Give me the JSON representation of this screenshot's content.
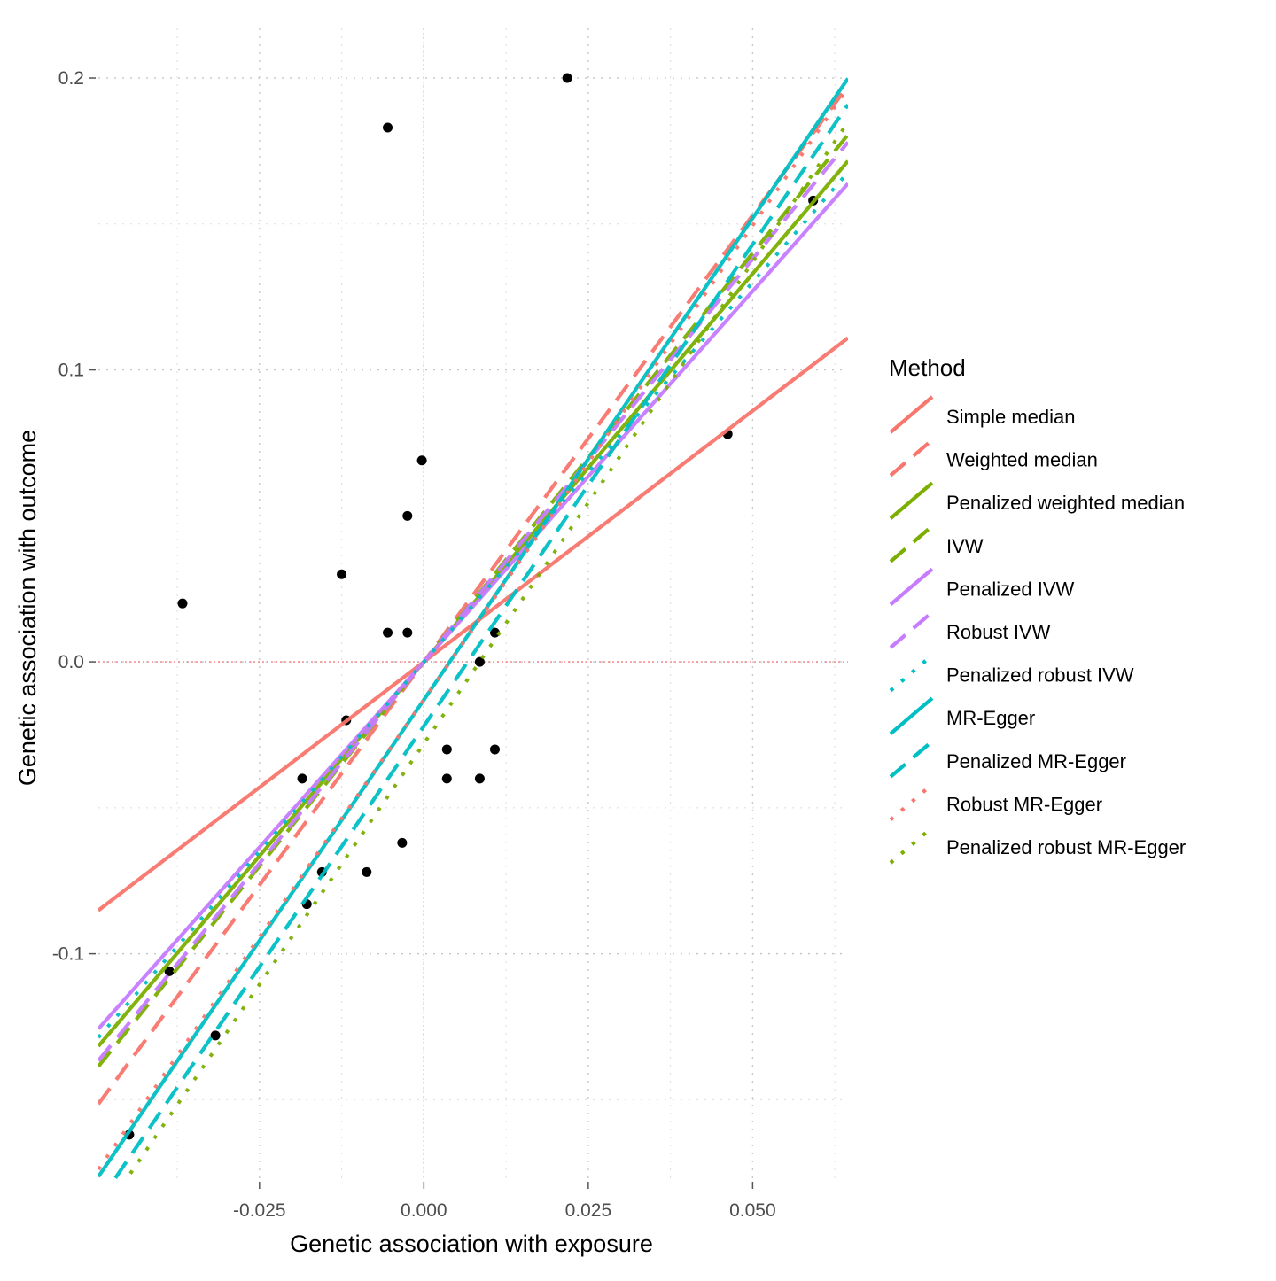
{
  "chart_data": {
    "type": "scatter",
    "xlabel": "Genetic association with exposure",
    "ylabel": "Genetic association with outcome",
    "xlim": [
      -0.0495,
      0.0645
    ],
    "ylim": [
      -0.1775,
      0.217
    ],
    "x_ticks": [
      {
        "value": -0.025,
        "label": "-0.025"
      },
      {
        "value": 0.0,
        "label": "0.000"
      },
      {
        "value": 0.025,
        "label": "0.025"
      },
      {
        "value": 0.05,
        "label": "0.050"
      }
    ],
    "y_ticks": [
      {
        "value": -0.1,
        "label": "-0.1"
      },
      {
        "value": 0.0,
        "label": "0.0"
      },
      {
        "value": 0.1,
        "label": "0.1"
      },
      {
        "value": 0.2,
        "label": "0.2"
      }
    ],
    "grid": true,
    "reference_lines": {
      "x": 0,
      "y": 0,
      "color": "#f08080"
    },
    "legend": {
      "title": "Method",
      "placement": "right"
    },
    "points": [
      {
        "x": 0.0218,
        "y": 0.2
      },
      {
        "x": -0.0055,
        "y": 0.183
      },
      {
        "x": 0.0592,
        "y": 0.158
      },
      {
        "x": 0.0462,
        "y": 0.078
      },
      {
        "x": -0.0003,
        "y": 0.069
      },
      {
        "x": -0.0025,
        "y": 0.05
      },
      {
        "x": -0.0125,
        "y": 0.03
      },
      {
        "x": -0.0367,
        "y": 0.02
      },
      {
        "x": -0.0055,
        "y": 0.01
      },
      {
        "x": -0.0025,
        "y": 0.01
      },
      {
        "x": 0.0108,
        "y": 0.01
      },
      {
        "x": 0.0085,
        "y": 0.0
      },
      {
        "x": -0.0118,
        "y": -0.02
      },
      {
        "x": 0.0035,
        "y": -0.03
      },
      {
        "x": 0.0108,
        "y": -0.03
      },
      {
        "x": -0.0185,
        "y": -0.04
      },
      {
        "x": 0.0035,
        "y": -0.04
      },
      {
        "x": 0.0085,
        "y": -0.04
      },
      {
        "x": -0.0033,
        "y": -0.062
      },
      {
        "x": -0.0155,
        "y": -0.072
      },
      {
        "x": -0.0087,
        "y": -0.072
      },
      {
        "x": -0.0178,
        "y": -0.083
      },
      {
        "x": -0.0387,
        "y": -0.106
      },
      {
        "x": -0.0317,
        "y": -0.128
      },
      {
        "x": -0.0448,
        "y": -0.162
      }
    ],
    "series": [
      {
        "name": "Simple median",
        "color": "#f8766d",
        "dash": "solid",
        "intercept": 0.0,
        "slope": 1.72
      },
      {
        "name": "Weighted median",
        "color": "#f8766d",
        "dash": "dashed",
        "intercept": 0.0,
        "slope": 3.06
      },
      {
        "name": "Penalized weighted median",
        "color": "#7cae00",
        "dash": "solid",
        "intercept": 0.0,
        "slope": 2.66
      },
      {
        "name": "IVW",
        "color": "#7cae00",
        "dash": "dashed",
        "intercept": 0.0,
        "slope": 2.8
      },
      {
        "name": "Penalized IVW",
        "color": "#c77cff",
        "dash": "solid",
        "intercept": 0.0,
        "slope": 2.54
      },
      {
        "name": "Robust IVW",
        "color": "#c77cff",
        "dash": "dashed",
        "intercept": 0.0,
        "slope": 2.76
      },
      {
        "name": "Penalized robust IVW",
        "color": "#00bfc4",
        "dash": "dotted",
        "intercept": 0.0,
        "slope": 2.6
      },
      {
        "name": "MR-Egger",
        "color": "#00bfc4",
        "dash": "solid",
        "intercept": -0.013,
        "slope": 3.3
      },
      {
        "name": "Penalized MR-Egger",
        "color": "#00bfc4",
        "dash": "dashed",
        "intercept": -0.022,
        "slope": 3.3
      },
      {
        "name": "Robust MR-Egger",
        "color": "#f8766d",
        "dash": "dotted",
        "intercept": -0.013,
        "slope": 3.25
      },
      {
        "name": "Penalized robust MR-Egger",
        "color": "#7cae00",
        "dash": "dotted",
        "intercept": -0.028,
        "slope": 3.3
      }
    ]
  }
}
